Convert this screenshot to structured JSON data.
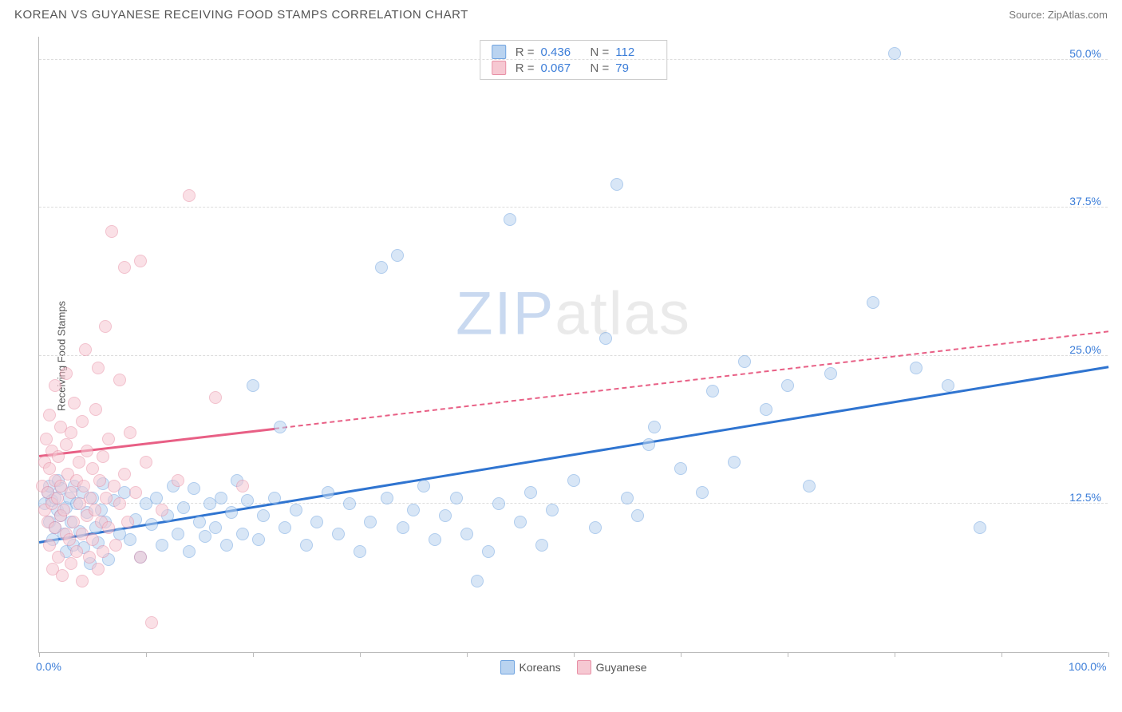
{
  "header": {
    "title": "KOREAN VS GUYANESE RECEIVING FOOD STAMPS CORRELATION CHART",
    "source_label": "Source:",
    "source_name": "ZipAtlas.com"
  },
  "chart": {
    "type": "scatter",
    "ylabel": "Receiving Food Stamps",
    "xlim": [
      0,
      100
    ],
    "ylim": [
      0,
      52
    ],
    "x_ticks": [
      0,
      10,
      20,
      30,
      40,
      50,
      60,
      70,
      80,
      90,
      100
    ],
    "x_tick_labels": {
      "0": "0.0%",
      "100": "100.0%"
    },
    "y_gridlines": [
      12.5,
      25.0,
      37.5,
      50.0
    ],
    "y_tick_labels": [
      "12.5%",
      "25.0%",
      "37.5%",
      "50.0%"
    ],
    "background_color": "#ffffff",
    "grid_color": "#dddddd",
    "axis_color": "#bbbbbb",
    "tick_label_color": "#3b7dd8",
    "watermark": {
      "z": "ZIP",
      "rest": "atlas",
      "z_color": "#c9d9f0",
      "rest_color": "#eaeaea"
    },
    "series": [
      {
        "name": "Koreans",
        "fill_color": "#b9d3f0",
        "stroke_color": "#6fa3e0",
        "trend_color": "#2f74d0",
        "R": "0.436",
        "N": "112",
        "trend": {
          "x1": 0,
          "y1": 9.2,
          "x2": 100,
          "y2": 24.0
        },
        "points": [
          [
            0.5,
            12.5
          ],
          [
            0.8,
            13.5
          ],
          [
            1.0,
            11.0
          ],
          [
            1.0,
            14.0
          ],
          [
            1.2,
            12.8
          ],
          [
            1.3,
            9.5
          ],
          [
            1.5,
            13.0
          ],
          [
            1.5,
            10.5
          ],
          [
            1.7,
            12.0
          ],
          [
            1.8,
            14.5
          ],
          [
            2.0,
            11.5
          ],
          [
            2.1,
            13.8
          ],
          [
            2.3,
            10.0
          ],
          [
            2.5,
            12.2
          ],
          [
            2.5,
            8.5
          ],
          [
            2.8,
            13.0
          ],
          [
            3.0,
            11.0
          ],
          [
            3.2,
            9.0
          ],
          [
            3.3,
            14.0
          ],
          [
            3.5,
            12.5
          ],
          [
            3.8,
            10.2
          ],
          [
            4.0,
            13.5
          ],
          [
            4.2,
            8.8
          ],
          [
            4.5,
            11.8
          ],
          [
            4.8,
            7.5
          ],
          [
            5.0,
            13.0
          ],
          [
            5.3,
            10.5
          ],
          [
            5.5,
            9.2
          ],
          [
            5.8,
            12.0
          ],
          [
            6.0,
            14.2
          ],
          [
            6.2,
            11.0
          ],
          [
            6.5,
            7.8
          ],
          [
            7.0,
            12.8
          ],
          [
            7.5,
            10.0
          ],
          [
            8.0,
            13.5
          ],
          [
            8.5,
            9.5
          ],
          [
            9.0,
            11.2
          ],
          [
            9.5,
            8.0
          ],
          [
            10.0,
            12.5
          ],
          [
            10.5,
            10.8
          ],
          [
            11.0,
            13.0
          ],
          [
            11.5,
            9.0
          ],
          [
            12.0,
            11.5
          ],
          [
            12.5,
            14.0
          ],
          [
            13.0,
            10.0
          ],
          [
            13.5,
            12.2
          ],
          [
            14.0,
            8.5
          ],
          [
            14.5,
            13.8
          ],
          [
            15.0,
            11.0
          ],
          [
            15.5,
            9.8
          ],
          [
            16.0,
            12.5
          ],
          [
            16.5,
            10.5
          ],
          [
            17.0,
            13.0
          ],
          [
            17.5,
            9.0
          ],
          [
            18.0,
            11.8
          ],
          [
            18.5,
            14.5
          ],
          [
            19.0,
            10.0
          ],
          [
            19.5,
            12.8
          ],
          [
            20.0,
            22.5
          ],
          [
            20.5,
            9.5
          ],
          [
            21.0,
            11.5
          ],
          [
            22.0,
            13.0
          ],
          [
            22.5,
            19.0
          ],
          [
            23.0,
            10.5
          ],
          [
            24.0,
            12.0
          ],
          [
            25.0,
            9.0
          ],
          [
            26.0,
            11.0
          ],
          [
            27.0,
            13.5
          ],
          [
            28.0,
            10.0
          ],
          [
            29.0,
            12.5
          ],
          [
            30.0,
            8.5
          ],
          [
            31.0,
            11.0
          ],
          [
            32.0,
            32.5
          ],
          [
            32.5,
            13.0
          ],
          [
            33.5,
            33.5
          ],
          [
            34.0,
            10.5
          ],
          [
            35.0,
            12.0
          ],
          [
            36.0,
            14.0
          ],
          [
            37.0,
            9.5
          ],
          [
            38.0,
            11.5
          ],
          [
            39.0,
            13.0
          ],
          [
            40.0,
            10.0
          ],
          [
            41.0,
            6.0
          ],
          [
            42.0,
            8.5
          ],
          [
            43.0,
            12.5
          ],
          [
            44.0,
            36.5
          ],
          [
            45.0,
            11.0
          ],
          [
            46.0,
            13.5
          ],
          [
            47.0,
            9.0
          ],
          [
            48.0,
            12.0
          ],
          [
            50.0,
            14.5
          ],
          [
            52.0,
            10.5
          ],
          [
            53.0,
            26.5
          ],
          [
            54.0,
            39.5
          ],
          [
            55.0,
            13.0
          ],
          [
            56.0,
            11.5
          ],
          [
            57.0,
            17.5
          ],
          [
            57.5,
            19.0
          ],
          [
            60.0,
            15.5
          ],
          [
            62.0,
            13.5
          ],
          [
            63.0,
            22.0
          ],
          [
            65.0,
            16.0
          ],
          [
            66.0,
            24.5
          ],
          [
            68.0,
            20.5
          ],
          [
            70.0,
            22.5
          ],
          [
            72.0,
            14.0
          ],
          [
            74.0,
            23.5
          ],
          [
            78.0,
            29.5
          ],
          [
            80.0,
            50.5
          ],
          [
            82.0,
            24.0
          ],
          [
            85.0,
            22.5
          ],
          [
            88.0,
            10.5
          ]
        ]
      },
      {
        "name": "Guyanese",
        "fill_color": "#f6c8d2",
        "stroke_color": "#e88fa5",
        "trend_color": "#e85f85",
        "R": "0.067",
        "N": "79",
        "trend": {
          "x1": 0,
          "y1": 16.5,
          "x2": 22,
          "y2": 18.8
        },
        "trend_ext": {
          "x1": 22,
          "y1": 18.8,
          "x2": 100,
          "y2": 27.0
        },
        "points": [
          [
            0.3,
            14.0
          ],
          [
            0.5,
            16.0
          ],
          [
            0.5,
            12.0
          ],
          [
            0.7,
            18.0
          ],
          [
            0.8,
            13.5
          ],
          [
            0.8,
            11.0
          ],
          [
            1.0,
            15.5
          ],
          [
            1.0,
            9.0
          ],
          [
            1.0,
            20.0
          ],
          [
            1.2,
            12.5
          ],
          [
            1.2,
            17.0
          ],
          [
            1.3,
            7.0
          ],
          [
            1.5,
            14.5
          ],
          [
            1.5,
            10.5
          ],
          [
            1.5,
            22.5
          ],
          [
            1.7,
            13.0
          ],
          [
            1.8,
            16.5
          ],
          [
            1.8,
            8.0
          ],
          [
            2.0,
            11.5
          ],
          [
            2.0,
            19.0
          ],
          [
            2.0,
            14.0
          ],
          [
            2.2,
            6.5
          ],
          [
            2.3,
            12.0
          ],
          [
            2.5,
            17.5
          ],
          [
            2.5,
            10.0
          ],
          [
            2.5,
            23.5
          ],
          [
            2.7,
            15.0
          ],
          [
            2.8,
            9.5
          ],
          [
            3.0,
            13.5
          ],
          [
            3.0,
            18.5
          ],
          [
            3.0,
            7.5
          ],
          [
            3.2,
            11.0
          ],
          [
            3.3,
            21.0
          ],
          [
            3.5,
            14.5
          ],
          [
            3.5,
            8.5
          ],
          [
            3.7,
            16.0
          ],
          [
            3.8,
            12.5
          ],
          [
            4.0,
            10.0
          ],
          [
            4.0,
            19.5
          ],
          [
            4.0,
            6.0
          ],
          [
            4.2,
            14.0
          ],
          [
            4.3,
            25.5
          ],
          [
            4.5,
            11.5
          ],
          [
            4.5,
            17.0
          ],
          [
            4.7,
            8.0
          ],
          [
            4.8,
            13.0
          ],
          [
            5.0,
            15.5
          ],
          [
            5.0,
            9.5
          ],
          [
            5.2,
            12.0
          ],
          [
            5.3,
            20.5
          ],
          [
            5.5,
            24.0
          ],
          [
            5.5,
            7.0
          ],
          [
            5.7,
            14.5
          ],
          [
            5.8,
            11.0
          ],
          [
            6.0,
            16.5
          ],
          [
            6.0,
            8.5
          ],
          [
            6.2,
            27.5
          ],
          [
            6.3,
            13.0
          ],
          [
            6.5,
            10.5
          ],
          [
            6.5,
            18.0
          ],
          [
            6.8,
            35.5
          ],
          [
            7.0,
            14.0
          ],
          [
            7.2,
            9.0
          ],
          [
            7.5,
            23.0
          ],
          [
            7.5,
            12.5
          ],
          [
            8.0,
            15.0
          ],
          [
            8.0,
            32.5
          ],
          [
            8.3,
            11.0
          ],
          [
            8.5,
            18.5
          ],
          [
            9.0,
            13.5
          ],
          [
            9.5,
            8.0
          ],
          [
            9.5,
            33.0
          ],
          [
            10.0,
            16.0
          ],
          [
            10.5,
            2.5
          ],
          [
            11.5,
            12.0
          ],
          [
            13.0,
            14.5
          ],
          [
            14.0,
            38.5
          ],
          [
            16.5,
            21.5
          ],
          [
            19.0,
            14.0
          ]
        ]
      }
    ],
    "bottom_legend": [
      {
        "label": "Koreans",
        "fill": "#b9d3f0",
        "stroke": "#6fa3e0"
      },
      {
        "label": "Guyanese",
        "fill": "#f6c8d2",
        "stroke": "#e88fa5"
      }
    ]
  }
}
